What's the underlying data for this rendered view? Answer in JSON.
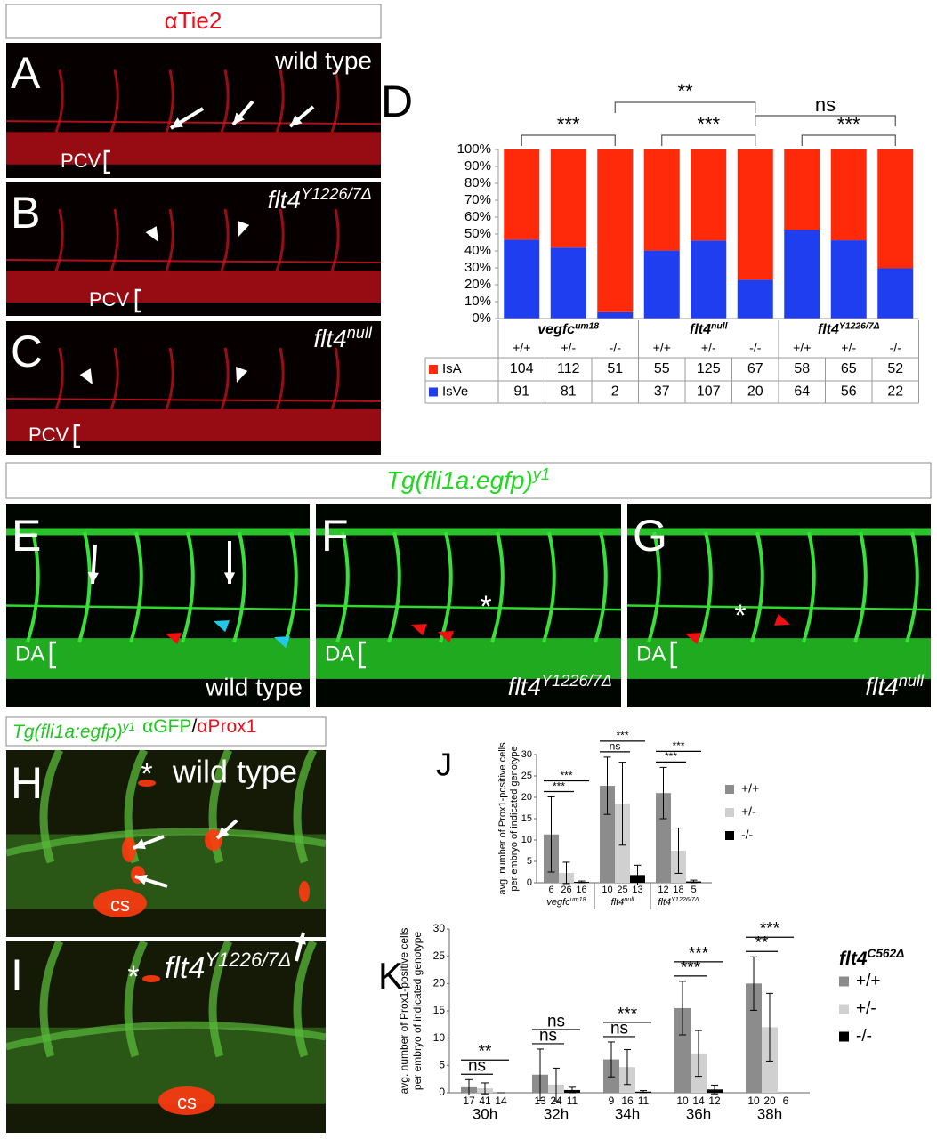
{
  "panels": {
    "tie2_header": "αTie2",
    "A": {
      "letter": "A",
      "label": "wild type",
      "pcv": "PCV"
    },
    "B": {
      "letter": "B",
      "label": {
        "text": "flt4",
        "sup": "Y1226/7Δ"
      },
      "pcv": "PCV"
    },
    "C": {
      "letter": "C",
      "label": {
        "text": "flt4",
        "sup": "null"
      },
      "pcv": "PCV"
    },
    "egfp_header": {
      "text": "Tg(fli1a:egfp)",
      "sup": "y1"
    },
    "E": {
      "letter": "E",
      "label": "wild type",
      "da": "DA"
    },
    "F": {
      "letter": "F",
      "label": {
        "text": "flt4",
        "sup": "Y1226/7Δ"
      },
      "da": "DA",
      "asterisk": "*"
    },
    "G": {
      "letter": "G",
      "label": {
        "text": "flt4",
        "sup": "null"
      },
      "da": "DA",
      "asterisk": "*"
    },
    "prox_header": [
      {
        "text": "Tg(fli1a:egfp)",
        "sup": "y1"
      },
      {
        "text": "αGFP"
      },
      {
        "text": "/"
      },
      {
        "text": "αProx1"
      }
    ],
    "H": {
      "letter": "H",
      "label": "wild type",
      "asterisk": "*",
      "cs": "cs"
    },
    "I": {
      "letter": "I",
      "label": {
        "text": "flt4",
        "sup": "Y1226/7Δ"
      },
      "asterisk": "*",
      "cs": "cs"
    }
  },
  "chart_data": [
    {
      "type": "stacked_percent_table",
      "letter": "D",
      "groups": [
        {
          "text": "vegfc",
          "sup": "um18"
        },
        {
          "text": "flt4",
          "sup": "null"
        },
        {
          "text": "flt4",
          "sup": "Y1226/7Δ"
        }
      ],
      "categories": [
        "+/+",
        "+/-",
        "-/-",
        "+/+",
        "+/-",
        "-/-",
        "+/+",
        "+/-",
        "-/-"
      ],
      "series": [
        {
          "name": "IsA",
          "color": "#ff2a0a",
          "values": [
            104,
            112,
            51,
            55,
            125,
            67,
            58,
            65,
            52
          ]
        },
        {
          "name": "IsVe",
          "color": "#1f3ef0",
          "values": [
            91,
            81,
            2,
            37,
            107,
            20,
            64,
            56,
            22
          ]
        }
      ],
      "ylim": [
        0,
        100
      ],
      "yticks": [
        {
          "value": 0,
          "label": "0%"
        },
        {
          "value": 10,
          "label": "10%"
        },
        {
          "value": 20,
          "label": "20%"
        },
        {
          "value": 30,
          "label": "30%"
        },
        {
          "value": 40,
          "label": "40%"
        },
        {
          "value": 50,
          "label": "50%"
        },
        {
          "value": 60,
          "label": "60%"
        },
        {
          "value": 70,
          "label": "70%"
        },
        {
          "value": 80,
          "label": "80%"
        },
        {
          "value": 90,
          "label": "90%"
        },
        {
          "value": 100,
          "label": "100%"
        }
      ],
      "significance": [
        "***",
        "**",
        "***",
        "ns",
        "***"
      ]
    },
    {
      "type": "grouped_bar_error",
      "letter": "J",
      "ylabel": [
        "avg. number of Prox1-positive cells",
        "per embryo of indicated genotype"
      ],
      "groups": [
        {
          "text": "vegfc",
          "sup": "um18"
        },
        {
          "text": "flt4",
          "sup": "null"
        },
        {
          "text": "flt4",
          "sup": "Y1226/7Δ"
        }
      ],
      "series": [
        {
          "name": "+/+",
          "color": "#8c8c8c",
          "values": [
            11.3,
            22.7,
            21
          ],
          "errors": [
            8.8,
            6.7,
            6
          ]
        },
        {
          "name": "+/-",
          "color": "#d0d0d0",
          "values": [
            2.3,
            18.5,
            7.5
          ],
          "errors": [
            2.5,
            9.7,
            5.3
          ]
        },
        {
          "name": "-/-",
          "color": "#000000",
          "values": [
            0.2,
            1.8,
            0.3
          ],
          "errors": [
            0.2,
            2.3,
            0.3
          ]
        }
      ],
      "n": [
        [
          6,
          26,
          16
        ],
        [
          10,
          25,
          13
        ],
        [
          12,
          18,
          5
        ]
      ],
      "significance": [
        [
          "***",
          "***"
        ],
        [
          "ns",
          "***"
        ],
        [
          "***",
          "***"
        ]
      ],
      "ylim": [
        0,
        30
      ],
      "yticks": [
        0,
        5,
        10,
        15,
        20,
        25,
        30
      ]
    },
    {
      "type": "grouped_bar_error",
      "letter": "K",
      "ylabel": [
        "avg. number of Prox1-positive cells",
        "per embryo of indicated genotype"
      ],
      "legend_title": {
        "text": "flt4",
        "sup": "C562Δ"
      },
      "groups": [
        "30h",
        "32h",
        "34h",
        "36h",
        "38h"
      ],
      "series": [
        {
          "name": "+/+",
          "color": "#8c8c8c",
          "values": [
            1.0,
            3.3,
            6.1,
            15.5,
            20
          ],
          "errors": [
            1.4,
            4.7,
            3.2,
            4.9,
            4.9
          ]
        },
        {
          "name": "+/-",
          "color": "#d0d0d0",
          "values": [
            0.8,
            1.5,
            4.7,
            7.2,
            12
          ],
          "errors": [
            1.0,
            3.0,
            3.2,
            4.2,
            6.2
          ]
        },
        {
          "name": "-/-",
          "color": "#000000",
          "values": [
            0,
            0.5,
            0.2,
            0.6,
            null
          ],
          "errors": [
            0,
            0.5,
            0.2,
            0.8,
            null
          ]
        }
      ],
      "n": [
        [
          17,
          41,
          14
        ],
        [
          13,
          24,
          11
        ],
        [
          9,
          16,
          11
        ],
        [
          10,
          14,
          12
        ],
        [
          10,
          20,
          6
        ]
      ],
      "significance": [
        [
          "ns",
          "**"
        ],
        [
          "ns",
          "ns"
        ],
        [
          "ns",
          "***"
        ],
        [
          "***",
          "***"
        ],
        [
          "**",
          "***"
        ]
      ],
      "ylim": [
        0,
        30
      ],
      "yticks": [
        0,
        5,
        10,
        15,
        20,
        25,
        30
      ]
    }
  ]
}
